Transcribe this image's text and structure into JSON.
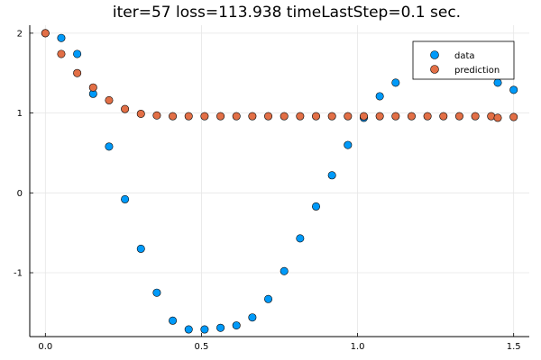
{
  "chart_data": {
    "type": "scatter",
    "title": "iter=57  loss=113.938 timeLastStep=0.1 sec.",
    "xlabel": "",
    "ylabel": "",
    "xlim": [
      -0.05,
      1.55
    ],
    "ylim": [
      -1.8,
      2.1
    ],
    "x_ticks": [
      {
        "value": 0.0,
        "label": "0.0"
      },
      {
        "value": 0.5,
        "label": "0.5"
      },
      {
        "value": 1.0,
        "label": "1.0"
      },
      {
        "value": 1.5,
        "label": "1.5"
      }
    ],
    "y_ticks": [
      {
        "value": -1,
        "label": "-1"
      },
      {
        "value": 0,
        "label": "0"
      },
      {
        "value": 1,
        "label": "1"
      },
      {
        "value": 2,
        "label": "2"
      }
    ],
    "grid": true,
    "legend": {
      "placement": "top-right"
    },
    "series": [
      {
        "name": "data",
        "color": "#009af9",
        "points": [
          [
            0.0,
            2.0
          ],
          [
            0.051,
            1.94
          ],
          [
            0.102,
            1.74
          ],
          [
            0.153,
            1.24
          ],
          [
            0.204,
            0.58
          ],
          [
            0.255,
            -0.08
          ],
          [
            0.306,
            -0.7
          ],
          [
            0.357,
            -1.25
          ],
          [
            0.408,
            -1.6
          ],
          [
            0.459,
            -1.71
          ],
          [
            0.51,
            -1.71
          ],
          [
            0.561,
            -1.69
          ],
          [
            0.612,
            -1.66
          ],
          [
            0.663,
            -1.56
          ],
          [
            0.714,
            -1.33
          ],
          [
            0.765,
            -0.98
          ],
          [
            0.816,
            -0.57
          ],
          [
            0.867,
            -0.17
          ],
          [
            0.918,
            0.22
          ],
          [
            0.969,
            0.6
          ],
          [
            1.02,
            0.94
          ],
          [
            1.071,
            1.21
          ],
          [
            1.122,
            1.38
          ],
          [
            1.449,
            1.38
          ],
          [
            1.5,
            1.29
          ]
        ]
      },
      {
        "name": "prediction",
        "color": "#e26f46",
        "points": [
          [
            0.0,
            2.0
          ],
          [
            0.051,
            1.74
          ],
          [
            0.102,
            1.5
          ],
          [
            0.153,
            1.32
          ],
          [
            0.204,
            1.16
          ],
          [
            0.255,
            1.05
          ],
          [
            0.306,
            0.99
          ],
          [
            0.357,
            0.97
          ],
          [
            0.408,
            0.96
          ],
          [
            0.459,
            0.96
          ],
          [
            0.51,
            0.96
          ],
          [
            0.561,
            0.96
          ],
          [
            0.612,
            0.96
          ],
          [
            0.663,
            0.96
          ],
          [
            0.714,
            0.96
          ],
          [
            0.765,
            0.96
          ],
          [
            0.816,
            0.96
          ],
          [
            0.867,
            0.96
          ],
          [
            0.918,
            0.96
          ],
          [
            0.969,
            0.96
          ],
          [
            1.02,
            0.96
          ],
          [
            1.071,
            0.96
          ],
          [
            1.122,
            0.96
          ],
          [
            1.173,
            0.96
          ],
          [
            1.224,
            0.96
          ],
          [
            1.275,
            0.96
          ],
          [
            1.326,
            0.96
          ],
          [
            1.377,
            0.96
          ],
          [
            1.428,
            0.96
          ],
          [
            1.449,
            0.94
          ],
          [
            1.5,
            0.95
          ]
        ]
      }
    ]
  }
}
